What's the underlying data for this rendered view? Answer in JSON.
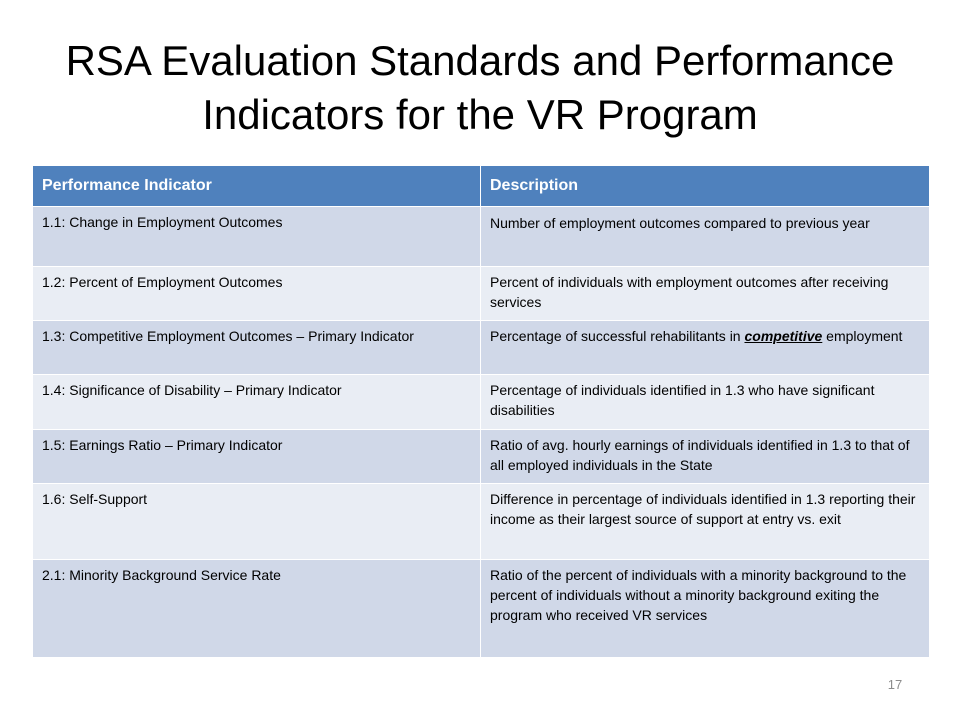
{
  "title": {
    "line1": "RSA Evaluation Standards and Performance",
    "line2": "Indicators for the VR Program"
  },
  "table": {
    "headers": {
      "indicator": "Performance Indicator",
      "description": "Description"
    },
    "rows": [
      {
        "indicator": "1.1: Change in Employment Outcomes",
        "description": "Number of employment outcomes compared to previous year"
      },
      {
        "indicator": "1.2: Percent of Employment Outcomes",
        "description": "Percent of individuals with employment outcomes after receiving services"
      },
      {
        "indicator": "1.3: Competitive Employment Outcomes – Primary Indicator",
        "description_pre": "Percentage of successful rehabilitants in ",
        "description_emphasis": "competitive",
        "description_post": " employment"
      },
      {
        "indicator": "1.4: Significance of Disability – Primary Indicator",
        "description": "Percentage of individuals identified in 1.3 who have significant disabilities"
      },
      {
        "indicator": "1.5: Earnings Ratio – Primary Indicator",
        "description": "Ratio of avg. hourly earnings of individuals identified in 1.3 to that of all employed individuals in the State"
      },
      {
        "indicator": "1.6: Self-Support",
        "description": "Difference in percentage of individuals identified in 1.3 reporting their income as their largest source of support at entry vs. exit"
      },
      {
        "indicator": "2.1: Minority Background Service Rate",
        "description": "Ratio of the percent of individuals with a minority background to the percent of individuals without a minority background exiting the program who received VR services"
      }
    ]
  },
  "page_number": "17",
  "colors": {
    "header_fill": "#4f81bd",
    "row_fill_dark": "#d0d8e8",
    "row_fill_light": "#e9edf4"
  }
}
